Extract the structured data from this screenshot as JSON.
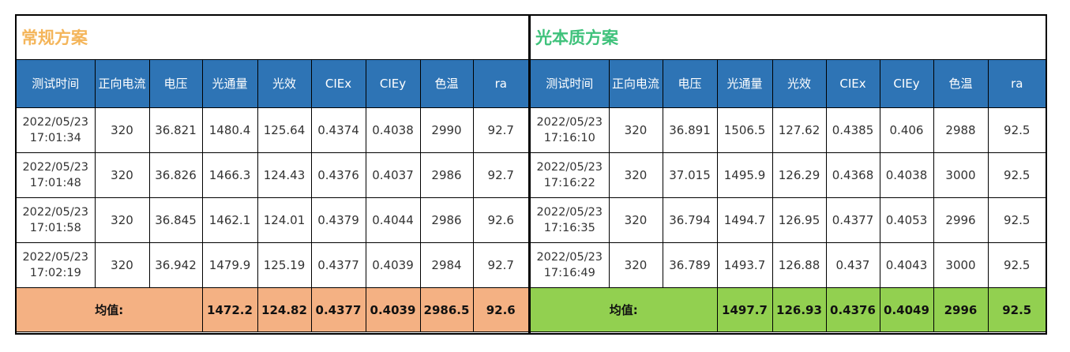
{
  "conventional": {
    "title": "常规方案",
    "headers": [
      "测试时间",
      "正向电流",
      "电压",
      "光通量",
      "光效",
      "CIEx",
      "CIEy",
      "色温",
      "ra"
    ],
    "rows": [
      {
        "date": "2022/05/23",
        "time": "17:01:34",
        "current": "320",
        "voltage": "36.821",
        "flux": "1480.4",
        "efficacy": "125.64",
        "ciex": "0.4374",
        "ciey": "0.4038",
        "cct": "2990",
        "ra": "92.7"
      },
      {
        "date": "2022/05/23",
        "time": "17:01:48",
        "current": "320",
        "voltage": "36.826",
        "flux": "1466.3",
        "efficacy": "124.43",
        "ciex": "0.4376",
        "ciey": "0.4037",
        "cct": "2986",
        "ra": "92.7"
      },
      {
        "date": "2022/05/23",
        "time": "17:01:58",
        "current": "320",
        "voltage": "36.845",
        "flux": "1462.1",
        "efficacy": "124.01",
        "ciex": "0.4379",
        "ciey": "0.4044",
        "cct": "2986",
        "ra": "92.6"
      },
      {
        "date": "2022/05/23",
        "time": "17:02:19",
        "current": "320",
        "voltage": "36.942",
        "flux": "1479.9",
        "efficacy": "125.19",
        "ciex": "0.4377",
        "ciey": "0.4039",
        "cct": "2984",
        "ra": "92.7"
      }
    ],
    "average": {
      "label": "均值:",
      "flux": "1472.2",
      "efficacy": "124.82",
      "ciex": "0.4377",
      "ciey": "0.4039",
      "cct": "2986.5",
      "ra": "92.6"
    }
  },
  "quality": {
    "title": "光本质方案",
    "headers": [
      "测试时间",
      "正向电流",
      "电压",
      "光通量",
      "光效",
      "CIEx",
      "CIEy",
      "色温",
      "ra"
    ],
    "rows": [
      {
        "date": "2022/05/23",
        "time": "17:16:10",
        "current": "320",
        "voltage": "36.891",
        "flux": "1506.5",
        "efficacy": "127.62",
        "ciex": "0.4385",
        "ciey": "0.406",
        "cct": "2988",
        "ra": "92.5"
      },
      {
        "date": "2022/05/23",
        "time": "17:16:22",
        "current": "320",
        "voltage": "37.015",
        "flux": "1495.9",
        "efficacy": "126.29",
        "ciex": "0.4368",
        "ciey": "0.4038",
        "cct": "3000",
        "ra": "92.5"
      },
      {
        "date": "2022/05/23",
        "time": "17:16:35",
        "current": "320",
        "voltage": "36.794",
        "flux": "1494.7",
        "efficacy": "126.95",
        "ciex": "0.4377",
        "ciey": "0.4053",
        "cct": "2996",
        "ra": "92.5"
      },
      {
        "date": "2022/05/23",
        "time": "17:16:49",
        "current": "320",
        "voltage": "36.789",
        "flux": "1493.7",
        "efficacy": "126.88",
        "ciex": "0.437",
        "ciey": "0.4043",
        "cct": "3000",
        "ra": "92.5"
      }
    ],
    "average": {
      "label": "均值:",
      "flux": "1497.7",
      "efficacy": "126.93",
      "ciex": "0.4376",
      "ciey": "0.4049",
      "cct": "2996",
      "ra": "92.5"
    }
  }
}
